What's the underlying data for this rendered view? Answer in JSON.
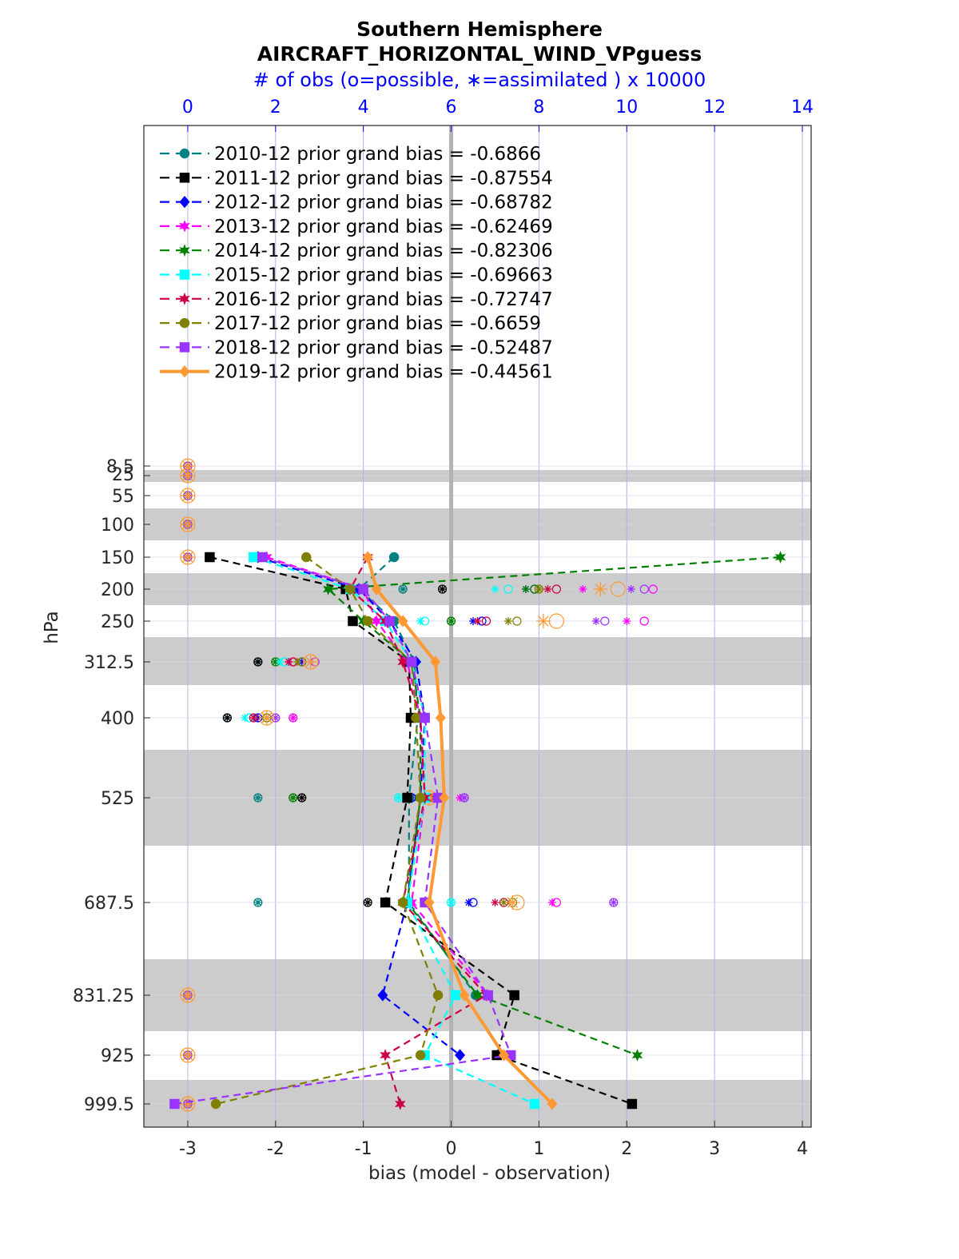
{
  "chart_data": {
    "type": "line",
    "title": [
      "Southern Hemisphere",
      "AIRCRAFT_HORIZONTAL_WIND_VPguess"
    ],
    "top_axis_label": "# of obs (o=possible, ∗=assimilated ) x 10000",
    "xlabel": "bias (model - observation)",
    "ylabel": "hPa",
    "xlim": [
      -3.5,
      4.1
    ],
    "top_xlim": [
      -1.0,
      14.2
    ],
    "x_ticks": [
      -3,
      -2,
      -1,
      0,
      1,
      2,
      3,
      4
    ],
    "top_x_ticks": [
      0,
      2,
      4,
      6,
      8,
      10,
      12,
      14
    ],
    "levels": [
      8.5,
      25,
      55,
      100,
      150,
      200,
      250,
      312.5,
      400,
      525,
      687.5,
      831.25,
      925,
      999.5
    ],
    "y_tick_labels": [
      "8.5",
      "25",
      "55",
      "100",
      "150",
      "200",
      "250",
      "312.5",
      "400",
      "525",
      "687.5",
      "831.25",
      "925",
      "999.5"
    ],
    "grid": true,
    "legend_position": "top-left",
    "colors": {
      "accent": "#0000ff",
      "band": "#cccccc",
      "zero_line": "#b3b3b3",
      "grid": "#b0b0e6"
    },
    "series": [
      {
        "name": "2010-12 prior grand bias = -0.6866",
        "color": "#008080",
        "marker": "circle",
        "style": "dashed",
        "bias": [
          null,
          null,
          null,
          null,
          -0.65,
          -1.05,
          -0.65,
          -0.42,
          -0.38,
          -0.48,
          -0.48,
          0.28,
          null,
          null
        ]
      },
      {
        "name": "2011-12 prior grand bias = -0.87554",
        "color": "#000000",
        "marker": "square",
        "style": "dashed",
        "bias": [
          null,
          null,
          null,
          null,
          -2.75,
          -1.2,
          -1.12,
          -0.48,
          -0.46,
          -0.5,
          -0.75,
          0.72,
          0.52,
          2.06
        ]
      },
      {
        "name": "2012-12 prior grand bias = -0.68782",
        "color": "#0000ff",
        "marker": "diamond",
        "style": "dashed",
        "bias": [
          null,
          null,
          null,
          null,
          -2.2,
          -1.05,
          -0.7,
          -0.4,
          -0.3,
          -0.35,
          -0.5,
          -0.78,
          0.1,
          null
        ]
      },
      {
        "name": "2013-12 prior grand bias = -0.62469",
        "color": "#ff00ff",
        "marker": "star",
        "style": "dashed",
        "bias": [
          null,
          null,
          null,
          null,
          -2.1,
          -1.0,
          -0.85,
          -0.5,
          -0.35,
          -0.3,
          -0.45,
          0.42,
          null,
          null
        ]
      },
      {
        "name": "2014-12 prior grand bias = -0.82306",
        "color": "#008000",
        "marker": "hexagram",
        "style": "dashed",
        "bias": [
          null,
          null,
          null,
          null,
          3.75,
          -1.4,
          -1.0,
          -0.45,
          -0.35,
          -0.35,
          -0.5,
          0.3,
          2.12,
          null
        ]
      },
      {
        "name": "2015-12 prior grand bias = -0.69663",
        "color": "#00ffff",
        "marker": "square",
        "style": "dashed",
        "bias": [
          null,
          null,
          null,
          null,
          -2.25,
          -1.15,
          -0.75,
          -0.45,
          -0.3,
          -0.3,
          -0.5,
          0.05,
          -0.3,
          0.95
        ]
      },
      {
        "name": "2016-12 prior grand bias = -0.72747",
        "color": "#cc0044",
        "marker": "star",
        "style": "dashed",
        "bias": [
          null,
          null,
          null,
          null,
          -0.95,
          -1.15,
          -0.75,
          -0.55,
          -0.35,
          -0.3,
          -0.55,
          0.4,
          -0.75,
          -0.58
        ]
      },
      {
        "name": "2017-12 prior grand bias = -0.6659",
        "color": "#808000",
        "marker": "circle",
        "style": "dashed",
        "bias": [
          null,
          null,
          null,
          null,
          -1.65,
          -1.15,
          -0.95,
          -0.45,
          -0.4,
          -0.35,
          -0.55,
          -0.15,
          -0.35,
          -2.68
        ]
      },
      {
        "name": "2018-12 prior grand bias = -0.52487",
        "color": "#9933ff",
        "marker": "square",
        "style": "dashed",
        "bias": [
          null,
          null,
          null,
          null,
          -2.15,
          -1.0,
          -0.7,
          -0.45,
          -0.3,
          -0.15,
          -0.3,
          0.42,
          0.68,
          -3.15
        ]
      },
      {
        "name": "2019-12 prior grand bias = -0.44561",
        "color": "#ff9933",
        "marker": "diamond",
        "style": "solid",
        "bias": [
          null,
          null,
          null,
          null,
          -0.95,
          -0.85,
          -0.55,
          -0.18,
          -0.12,
          -0.08,
          -0.25,
          0.15,
          0.6,
          1.15
        ]
      }
    ],
    "obs_counts": [
      {
        "year": "2010-12",
        "color": "#008080",
        "assimilated": [
          0,
          0,
          0,
          0,
          0,
          4.9,
          null,
          1.6,
          0.9,
          1.6,
          1.6,
          0,
          0,
          0
        ],
        "possible": [
          0,
          0,
          0,
          0,
          0,
          4.9,
          null,
          1.6,
          0.9,
          1.6,
          1.6,
          0,
          0,
          0
        ]
      },
      {
        "year": "2011-12",
        "color": "#000000",
        "assimilated": [
          0,
          0,
          0,
          0,
          0,
          5.8,
          null,
          1.6,
          0.9,
          2.6,
          4.1,
          0,
          0,
          0
        ],
        "possible": [
          0,
          0,
          0,
          0,
          0,
          5.8,
          null,
          1.6,
          0.9,
          2.6,
          4.1,
          0,
          0,
          0
        ]
      },
      {
        "year": "2012-12",
        "color": "#0000ff",
        "assimilated": [
          0,
          0,
          0,
          0,
          0,
          7.7,
          6.5,
          2.6,
          1.6,
          5.1,
          6.4,
          0,
          0,
          0
        ],
        "possible": [
          0,
          0,
          0,
          0,
          0,
          7.9,
          6.7,
          2.6,
          1.6,
          5.1,
          6.5,
          0,
          0,
          0
        ]
      },
      {
        "year": "2013-12",
        "color": "#ff00ff",
        "assimilated": [
          0,
          0,
          0,
          0,
          0,
          9.0,
          10.0,
          2.3,
          2.4,
          6.2,
          8.3,
          0,
          0,
          0
        ],
        "possible": [
          0,
          0,
          0,
          0,
          0,
          10.6,
          10.4,
          2.4,
          2.4,
          6.3,
          8.4,
          0,
          0,
          0
        ]
      },
      {
        "year": "2014-12",
        "color": "#008000",
        "assimilated": [
          0,
          0,
          0,
          0,
          0,
          7.7,
          6.0,
          2.0,
          1.8,
          2.4,
          4.9,
          0,
          0,
          0
        ],
        "possible": [
          0,
          0,
          0,
          0,
          0,
          7.9,
          6.0,
          2.0,
          1.8,
          2.4,
          4.9,
          0,
          0,
          0
        ]
      },
      {
        "year": "2015-12",
        "color": "#00ffff",
        "assimilated": [
          0,
          0,
          0,
          0,
          0,
          7.0,
          5.3,
          2.1,
          1.3,
          4.8,
          6.0,
          0,
          0,
          0
        ],
        "possible": [
          0,
          0,
          0,
          0,
          0,
          7.3,
          5.4,
          2.2,
          1.4,
          4.8,
          6.0,
          0,
          0,
          0
        ]
      },
      {
        "year": "2016-12",
        "color": "#cc0044",
        "assimilated": [
          0,
          0,
          0,
          0,
          0,
          8.2,
          6.6,
          2.3,
          1.5,
          5.6,
          7.0,
          0,
          0,
          0
        ],
        "possible": [
          0,
          0,
          0,
          0,
          0,
          8.4,
          6.8,
          2.4,
          1.5,
          5.6,
          7.2,
          0,
          0,
          0
        ]
      },
      {
        "year": "2017-12",
        "color": "#808000",
        "assimilated": [
          0,
          0,
          0,
          0,
          0,
          8.0,
          7.3,
          2.5,
          1.8,
          5.4,
          7.2,
          0,
          0,
          0
        ],
        "possible": [
          0,
          0,
          0,
          0,
          0,
          8.0,
          7.5,
          2.6,
          1.8,
          5.5,
          7.4,
          0,
          0,
          0
        ]
      },
      {
        "year": "2018-12",
        "color": "#9933ff",
        "assimilated": [
          0,
          0,
          0,
          0,
          0,
          10.1,
          9.3,
          2.8,
          2.0,
          6.3,
          9.7,
          0,
          0,
          0
        ],
        "possible": [
          0,
          0,
          0,
          0,
          0,
          10.4,
          9.5,
          2.9,
          2.0,
          6.3,
          9.7,
          0,
          0,
          0
        ]
      },
      {
        "year": "2019-12",
        "color": "#ff9933",
        "assimilated": [
          0,
          0,
          0,
          0,
          0,
          9.4,
          8.1,
          2.8,
          1.8,
          5.5,
          7.4,
          0,
          0,
          0
        ],
        "possible": [
          0,
          0,
          0,
          0,
          0,
          9.8,
          8.4,
          2.8,
          1.8,
          5.5,
          7.5,
          0,
          0,
          0
        ]
      }
    ]
  }
}
